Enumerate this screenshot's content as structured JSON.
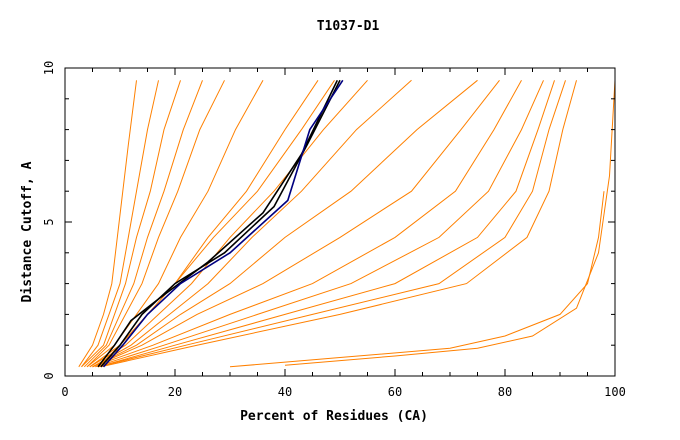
{
  "chart_data": {
    "type": "line",
    "title": "T1037-D1",
    "xlabel": "Percent of Residues (CA)",
    "ylabel": "Distance Cutoff, A",
    "xlim": [
      0,
      100
    ],
    "ylim": [
      0,
      10
    ],
    "x_ticks": [
      0,
      20,
      40,
      60,
      80,
      100
    ],
    "y_ticks": [
      0,
      5,
      10
    ],
    "grid": false,
    "legend": "none",
    "colors": {
      "models": "#ff8000",
      "highlight_1": "#000000",
      "highlight_2": "#000080",
      "axes": "#000000"
    },
    "series": [
      {
        "group": "models",
        "color": "#ff8000",
        "x": [
          2.5,
          5,
          7,
          8.5,
          9.5,
          10.5,
          11.5,
          13
        ],
        "y": [
          0.3,
          1,
          2,
          3,
          4.5,
          6,
          7.5,
          9.6
        ]
      },
      {
        "group": "models",
        "color": "#ff8000",
        "x": [
          3,
          6,
          8,
          10,
          11.5,
          13,
          15,
          17
        ],
        "y": [
          0.3,
          1,
          2,
          3,
          4.5,
          6,
          8,
          9.6
        ]
      },
      {
        "group": "models",
        "color": "#ff8000",
        "x": [
          3,
          7,
          9,
          11,
          13,
          15.5,
          18,
          21
        ],
        "y": [
          0.3,
          1,
          2,
          3,
          4.5,
          6,
          8,
          9.6
        ]
      },
      {
        "group": "models",
        "color": "#ff8000",
        "x": [
          3.5,
          7.5,
          10,
          12.5,
          15,
          18,
          21.5,
          25
        ],
        "y": [
          0.3,
          1,
          2,
          3,
          4.5,
          6,
          8,
          9.6
        ]
      },
      {
        "group": "models",
        "color": "#ff8000",
        "x": [
          4,
          8,
          11,
          14,
          17,
          20.5,
          24.5,
          29
        ],
        "y": [
          0.3,
          1,
          2,
          3,
          4.5,
          6,
          8,
          9.6
        ]
      },
      {
        "group": "models",
        "color": "#ff8000",
        "x": [
          4,
          9,
          13,
          17,
          21,
          26,
          31,
          36
        ],
        "y": [
          0.3,
          1,
          2,
          3,
          4.5,
          6,
          8,
          9.6
        ]
      },
      {
        "group": "models",
        "color": "#ff8000",
        "x": [
          4.5,
          10,
          15,
          20,
          26,
          33,
          40,
          46
        ],
        "y": [
          0.3,
          1,
          2,
          3,
          4.5,
          6,
          8,
          9.6
        ]
      },
      {
        "group": "models",
        "color": "#ff8000",
        "x": [
          4.5,
          11,
          17,
          23,
          30,
          38,
          47,
          55
        ],
        "y": [
          0.3,
          1,
          2,
          3,
          4.5,
          6,
          8,
          9.6
        ]
      },
      {
        "group": "models",
        "color": "#ff8000",
        "x": [
          5,
          12,
          19,
          26,
          34,
          43,
          53,
          63
        ],
        "y": [
          0.3,
          1,
          2,
          3,
          4.5,
          6,
          8,
          9.6
        ]
      },
      {
        "group": "models",
        "color": "#ff8000",
        "x": [
          5,
          13,
          21,
          30,
          40,
          52,
          64,
          75
        ],
        "y": [
          0.3,
          1,
          2,
          3,
          4.5,
          6,
          8,
          9.6
        ]
      },
      {
        "group": "models",
        "color": "#ff8000",
        "x": [
          5,
          14,
          24,
          36,
          50,
          63,
          72,
          79
        ],
        "y": [
          0.3,
          1,
          2,
          3,
          4.5,
          6,
          8,
          9.6
        ]
      },
      {
        "group": "models",
        "color": "#ff8000",
        "x": [
          5,
          16,
          30,
          45,
          60,
          71,
          78,
          83
        ],
        "y": [
          0.3,
          1,
          2,
          3,
          4.5,
          6,
          8,
          9.6
        ]
      },
      {
        "group": "models",
        "color": "#ff8000",
        "x": [
          5.5,
          18,
          35,
          52,
          68,
          77,
          83,
          87
        ],
        "y": [
          0.3,
          1,
          2,
          3,
          4.5,
          6,
          8,
          9.6
        ]
      },
      {
        "group": "models",
        "color": "#ff8000",
        "x": [
          6,
          20,
          40,
          60,
          75,
          82,
          86,
          89
        ],
        "y": [
          0.3,
          1,
          2,
          3,
          4.5,
          6,
          8,
          9.6
        ]
      },
      {
        "group": "models",
        "color": "#ff8000",
        "x": [
          6,
          22,
          45,
          68,
          80,
          85,
          88,
          91
        ],
        "y": [
          0.3,
          1,
          2,
          3,
          4.5,
          6,
          8,
          9.6
        ]
      },
      {
        "group": "models",
        "color": "#ff8000",
        "x": [
          6.5,
          24,
          50,
          73,
          84,
          88,
          90.5,
          93
        ],
        "y": [
          0.3,
          1,
          2,
          3,
          4.5,
          6,
          8,
          9.6
        ]
      },
      {
        "group": "models",
        "color": "#ff8000",
        "x": [
          30,
          50,
          70,
          80,
          90,
          95,
          97,
          98
        ],
        "y": [
          0.3,
          0.6,
          0.9,
          1.3,
          2,
          3,
          4.5,
          6
        ]
      },
      {
        "group": "models",
        "color": "#ff8000",
        "x": [
          40,
          60,
          75,
          85,
          93,
          97,
          99,
          100
        ],
        "y": [
          0.35,
          0.65,
          0.9,
          1.3,
          2.2,
          4,
          6.5,
          9.6
        ]
      },
      {
        "group": "models",
        "color": "#ff8000",
        "x": [
          6,
          10,
          15,
          20,
          27,
          35,
          43,
          49
        ],
        "y": [
          0.3,
          1,
          2,
          3,
          4.5,
          6,
          8,
          9.6
        ]
      },
      {
        "group": "highlight",
        "color": "#000000",
        "x": [
          6,
          9,
          12,
          17,
          26,
          36,
          43,
          49.5
        ],
        "y": [
          0.3,
          1,
          1.8,
          2.5,
          3.7,
          5.3,
          7.2,
          9.6
        ]
      },
      {
        "group": "highlight",
        "color": "#000000",
        "x": [
          6.5,
          10,
          14,
          20,
          29,
          38,
          44,
          50
        ],
        "y": [
          0.3,
          1,
          2,
          3,
          4,
          5.5,
          7.5,
          9.6
        ]
      },
      {
        "group": "highlight",
        "color": "#000080",
        "x": [
          7,
          10.5,
          15,
          21,
          30,
          40.5,
          44.5,
          50.5
        ],
        "y": [
          0.3,
          1,
          2,
          3,
          4,
          5.7,
          8,
          9.6
        ]
      }
    ]
  }
}
